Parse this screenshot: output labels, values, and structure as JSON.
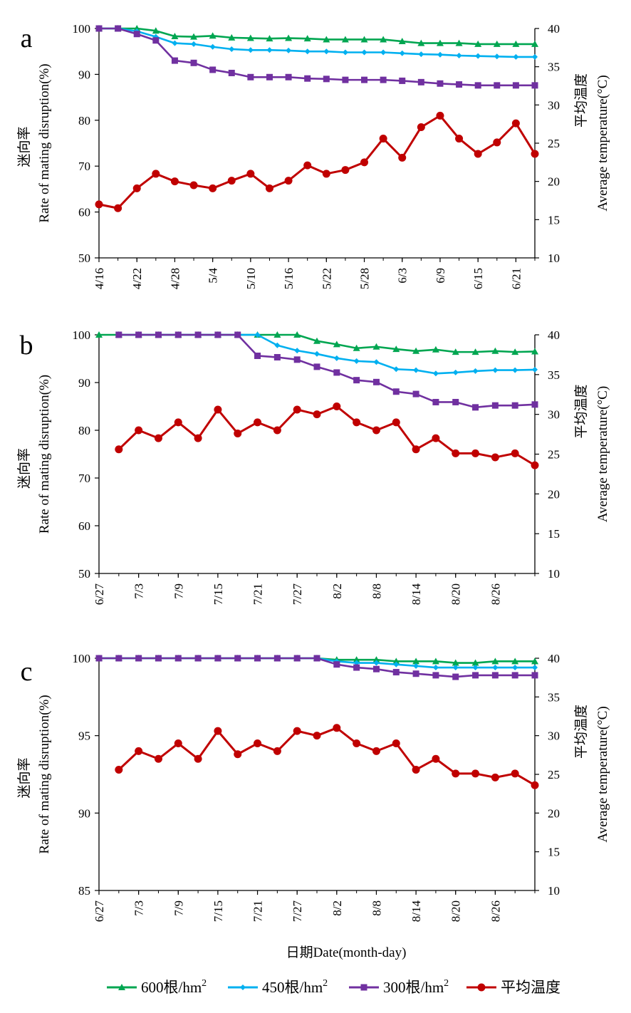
{
  "figure": {
    "xlabel": "日期Date(month-day)",
    "legend": [
      {
        "label": "600根/hm",
        "sup": "2",
        "color": "#00a651",
        "marker": "triangle"
      },
      {
        "label": "450根/hm",
        "sup": "2",
        "color": "#00b0f0",
        "marker": "diamond"
      },
      {
        "label": "300根/hm",
        "sup": "2",
        "color": "#7030a0",
        "marker": "square"
      },
      {
        "label": "平均温度",
        "sup": "",
        "color": "#c00000",
        "marker": "circle"
      }
    ]
  },
  "chart_data": [
    {
      "panel": "a",
      "type": "line",
      "ylabel_cn": "迷向率",
      "ylabel_en": "Rate of mating disruption(%)",
      "y2label_cn": "平均温度",
      "y2label_en": "Average temperature(°C)",
      "ylim": [
        50,
        100
      ],
      "yticks": [
        "50",
        "60",
        "70",
        "80",
        "90",
        "100"
      ],
      "y2lim": [
        10,
        40
      ],
      "y2ticks": [
        "10",
        "15",
        "20",
        "25",
        "30",
        "35",
        "40"
      ],
      "x_tick_labels": [
        "4/16",
        "4/22",
        "4/28",
        "5/4",
        "5/10",
        "5/16",
        "5/22",
        "5/28",
        "6/3",
        "6/9",
        "6/15",
        "6/21"
      ],
      "series": [
        {
          "name": "600根/hm2",
          "axis": "left",
          "values": [
            100,
            100,
            100,
            99.5,
            98.3,
            98.2,
            98.4,
            98,
            97.9,
            97.8,
            97.9,
            97.8,
            97.6,
            97.6,
            97.6,
            97.6,
            97.2,
            96.8,
            96.8,
            96.8,
            96.6,
            96.6,
            96.6,
            96.6
          ]
        },
        {
          "name": "450根/hm2",
          "axis": "left",
          "values": [
            100,
            100,
            99.4,
            98.2,
            96.8,
            96.6,
            96.0,
            95.5,
            95.3,
            95.3,
            95.2,
            95.0,
            95.0,
            94.8,
            94.8,
            94.8,
            94.6,
            94.4,
            94.3,
            94.1,
            94.0,
            93.9,
            93.8,
            93.8
          ]
        },
        {
          "name": "300根/hm2",
          "axis": "left",
          "values": [
            100,
            100,
            98.8,
            97.4,
            93.0,
            92.5,
            91.0,
            90.3,
            89.4,
            89.4,
            89.4,
            89.1,
            89.0,
            88.8,
            88.8,
            88.8,
            88.6,
            88.3,
            88.0,
            87.8,
            87.6,
            87.6,
            87.6,
            87.6
          ]
        },
        {
          "name": "平均温度",
          "axis": "right",
          "values": [
            17,
            16.5,
            19.1,
            21,
            20,
            19.5,
            19.1,
            20.1,
            21,
            19.1,
            20.1,
            22.1,
            21,
            21.5,
            22.5,
            25.6,
            23.1,
            27.1,
            28.6,
            25.6,
            23.6,
            25.1,
            27.6,
            23.6
          ]
        }
      ]
    },
    {
      "panel": "b",
      "type": "line",
      "ylabel_cn": "迷向率",
      "ylabel_en": "Rate of mating disruption(%)",
      "y2label_cn": "平均温度",
      "y2label_en": "Average temperature(°C)",
      "ylim": [
        50,
        100
      ],
      "yticks": [
        "50",
        "60",
        "70",
        "80",
        "90",
        "100"
      ],
      "y2lim": [
        10,
        40
      ],
      "y2ticks": [
        "10",
        "15",
        "20",
        "25",
        "30",
        "35",
        "40"
      ],
      "x_tick_labels": [
        "6/27",
        "7/3",
        "7/9",
        "7/15",
        "7/21",
        "7/27",
        "8/2",
        "8/8",
        "8/14",
        "8/20",
        "8/26"
      ],
      "series": [
        {
          "name": "600根/hm2",
          "axis": "left",
          "values": [
            100,
            100,
            100,
            100,
            100,
            100,
            100,
            100,
            100,
            100,
            100,
            98.7,
            98.0,
            97.2,
            97.5,
            97.0,
            96.6,
            96.9,
            96.4,
            96.4,
            96.6,
            96.4,
            96.5
          ]
        },
        {
          "name": "450根/hm2",
          "axis": "left",
          "values": [
            100,
            100,
            100,
            100,
            100,
            100,
            100,
            100,
            97.8,
            96.7,
            96.0,
            95.1,
            94.5,
            94.3,
            92.8,
            92.6,
            91.9,
            92.1,
            92.4,
            92.6,
            92.6,
            92.7
          ]
        },
        {
          "name": "300根/hm2",
          "axis": "left",
          "values": [
            100,
            100,
            100,
            100,
            100,
            100,
            100,
            95.6,
            95.3,
            94.8,
            93.3,
            92.1,
            90.5,
            90.1,
            88.1,
            87.6,
            85.9,
            85.9,
            84.8,
            85.2,
            85.2,
            85.4
          ]
        },
        {
          "name": "平均温度",
          "axis": "right",
          "values": [
            25.6,
            28.0,
            27.0,
            29.0,
            27.0,
            30.6,
            27.6,
            29.0,
            28.0,
            30.6,
            30.0,
            31.0,
            29.0,
            28.0,
            29.0,
            25.6,
            27.0,
            25.1,
            25.1,
            24.6,
            25.1,
            23.6
          ]
        }
      ]
    },
    {
      "panel": "c",
      "type": "line",
      "ylabel_cn": "迷向率",
      "ylabel_en": "Rate of mating disruption(%)",
      "y2label_cn": "平均温度",
      "y2label_en": "Average temperature(°C)",
      "ylim": [
        85,
        100
      ],
      "yticks": [
        "85",
        "90",
        "95",
        "100"
      ],
      "y2lim": [
        10,
        40
      ],
      "y2ticks": [
        "10",
        "15",
        "20",
        "25",
        "30",
        "35",
        "40"
      ],
      "x_tick_labels": [
        "6/27",
        "7/3",
        "7/9",
        "7/15",
        "7/21",
        "7/27",
        "8/2",
        "8/8",
        "8/14",
        "8/20",
        "8/26"
      ],
      "series": [
        {
          "name": "600根/hm2",
          "axis": "left",
          "values": [
            100,
            100,
            100,
            100,
            100,
            100,
            100,
            100,
            100,
            100,
            100,
            100,
            99.9,
            99.9,
            99.9,
            99.8,
            99.8,
            99.8,
            99.7,
            99.7,
            99.8,
            99.8,
            99.8
          ]
        },
        {
          "name": "450根/hm2",
          "axis": "left",
          "values": [
            100,
            100,
            100,
            100,
            100,
            100,
            100,
            100,
            100,
            100,
            100,
            100,
            99.8,
            99.7,
            99.7,
            99.6,
            99.5,
            99.4,
            99.4,
            99.4,
            99.4,
            99.4,
            99.4
          ]
        },
        {
          "name": "300根/hm2",
          "axis": "left",
          "values": [
            100,
            100,
            100,
            100,
            100,
            100,
            100,
            100,
            100,
            100,
            100,
            100,
            99.6,
            99.4,
            99.3,
            99.1,
            99.0,
            98.9,
            98.8,
            98.9,
            98.9,
            98.9,
            98.9
          ]
        },
        {
          "name": "平均温度",
          "axis": "right",
          "values": [
            25.6,
            28.0,
            27.0,
            29.0,
            27.0,
            30.6,
            27.6,
            29.0,
            28.0,
            30.6,
            30.0,
            31.0,
            29.0,
            28.0,
            29.0,
            25.6,
            27.0,
            25.1,
            25.1,
            24.6,
            25.1,
            23.6
          ]
        }
      ]
    }
  ]
}
